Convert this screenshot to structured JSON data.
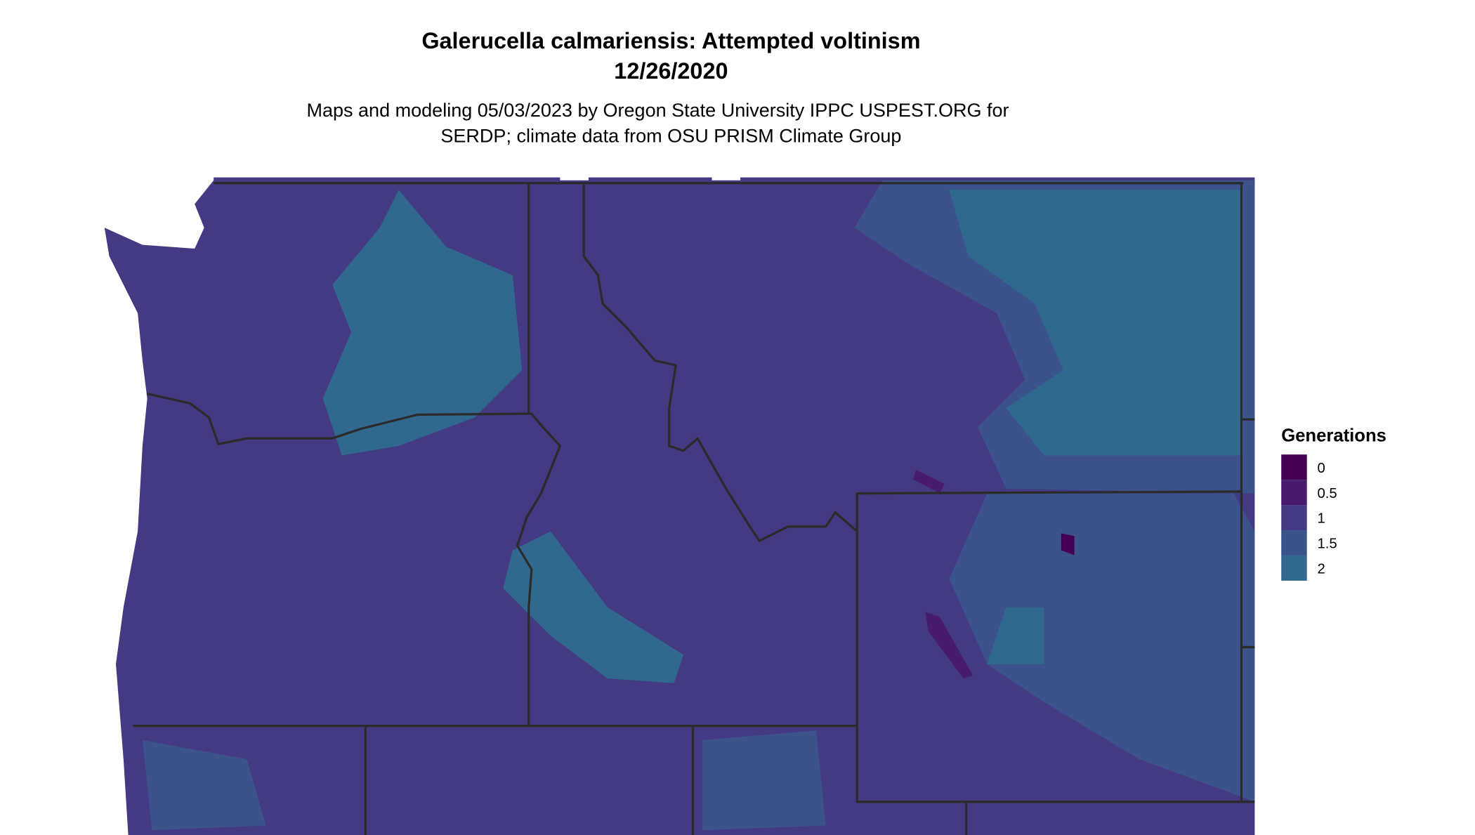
{
  "title": "Galerucella calmariensis: Attempted voltinism",
  "date": "12/26/2020",
  "subtitle_line1": "Maps and modeling 05/03/2023 by Oregon State University IPPC USPEST.ORG for",
  "subtitle_line2": "SERDP; climate data from OSU PRISM Climate Group",
  "legend": {
    "title": "Generations",
    "items": [
      {
        "label": "0",
        "color": "#440154"
      },
      {
        "label": "0.5",
        "color": "#481B6D"
      },
      {
        "label": "1",
        "color": "#443983"
      },
      {
        "label": "1.5",
        "color": "#3B528B"
      },
      {
        "label": "2",
        "color": "#31688E"
      }
    ]
  },
  "map": {
    "border_color": "#2b2b2b",
    "background_color": "#ffffff"
  }
}
